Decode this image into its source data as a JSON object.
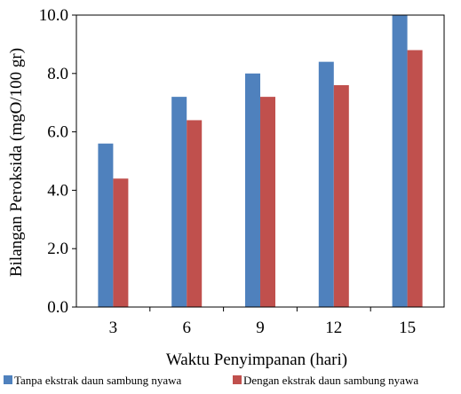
{
  "chart_data": {
    "type": "bar",
    "title": "",
    "xlabel": "Waktu Penyimpanan  (hari)",
    "ylabel": "Bilangan Peroksida (mgO/100 gr)",
    "categories": [
      "3",
      "6",
      "9",
      "12",
      "15"
    ],
    "ylim": [
      0,
      10
    ],
    "yticks": [
      "0.0",
      "2.0",
      "4.0",
      "6.0",
      "8.0",
      "10.0"
    ],
    "grid": false,
    "legend_position": "bottom",
    "series": [
      {
        "name": "Tanpa ekstrak daun sambung nyawa",
        "color": "#4f81bd",
        "values": [
          5.6,
          7.2,
          8.0,
          8.4,
          10.0
        ]
      },
      {
        "name": "Dengan ekstrak daun sambung nyawa",
        "color": "#c0504d",
        "values": [
          4.4,
          6.4,
          7.2,
          7.6,
          8.8
        ]
      }
    ]
  }
}
